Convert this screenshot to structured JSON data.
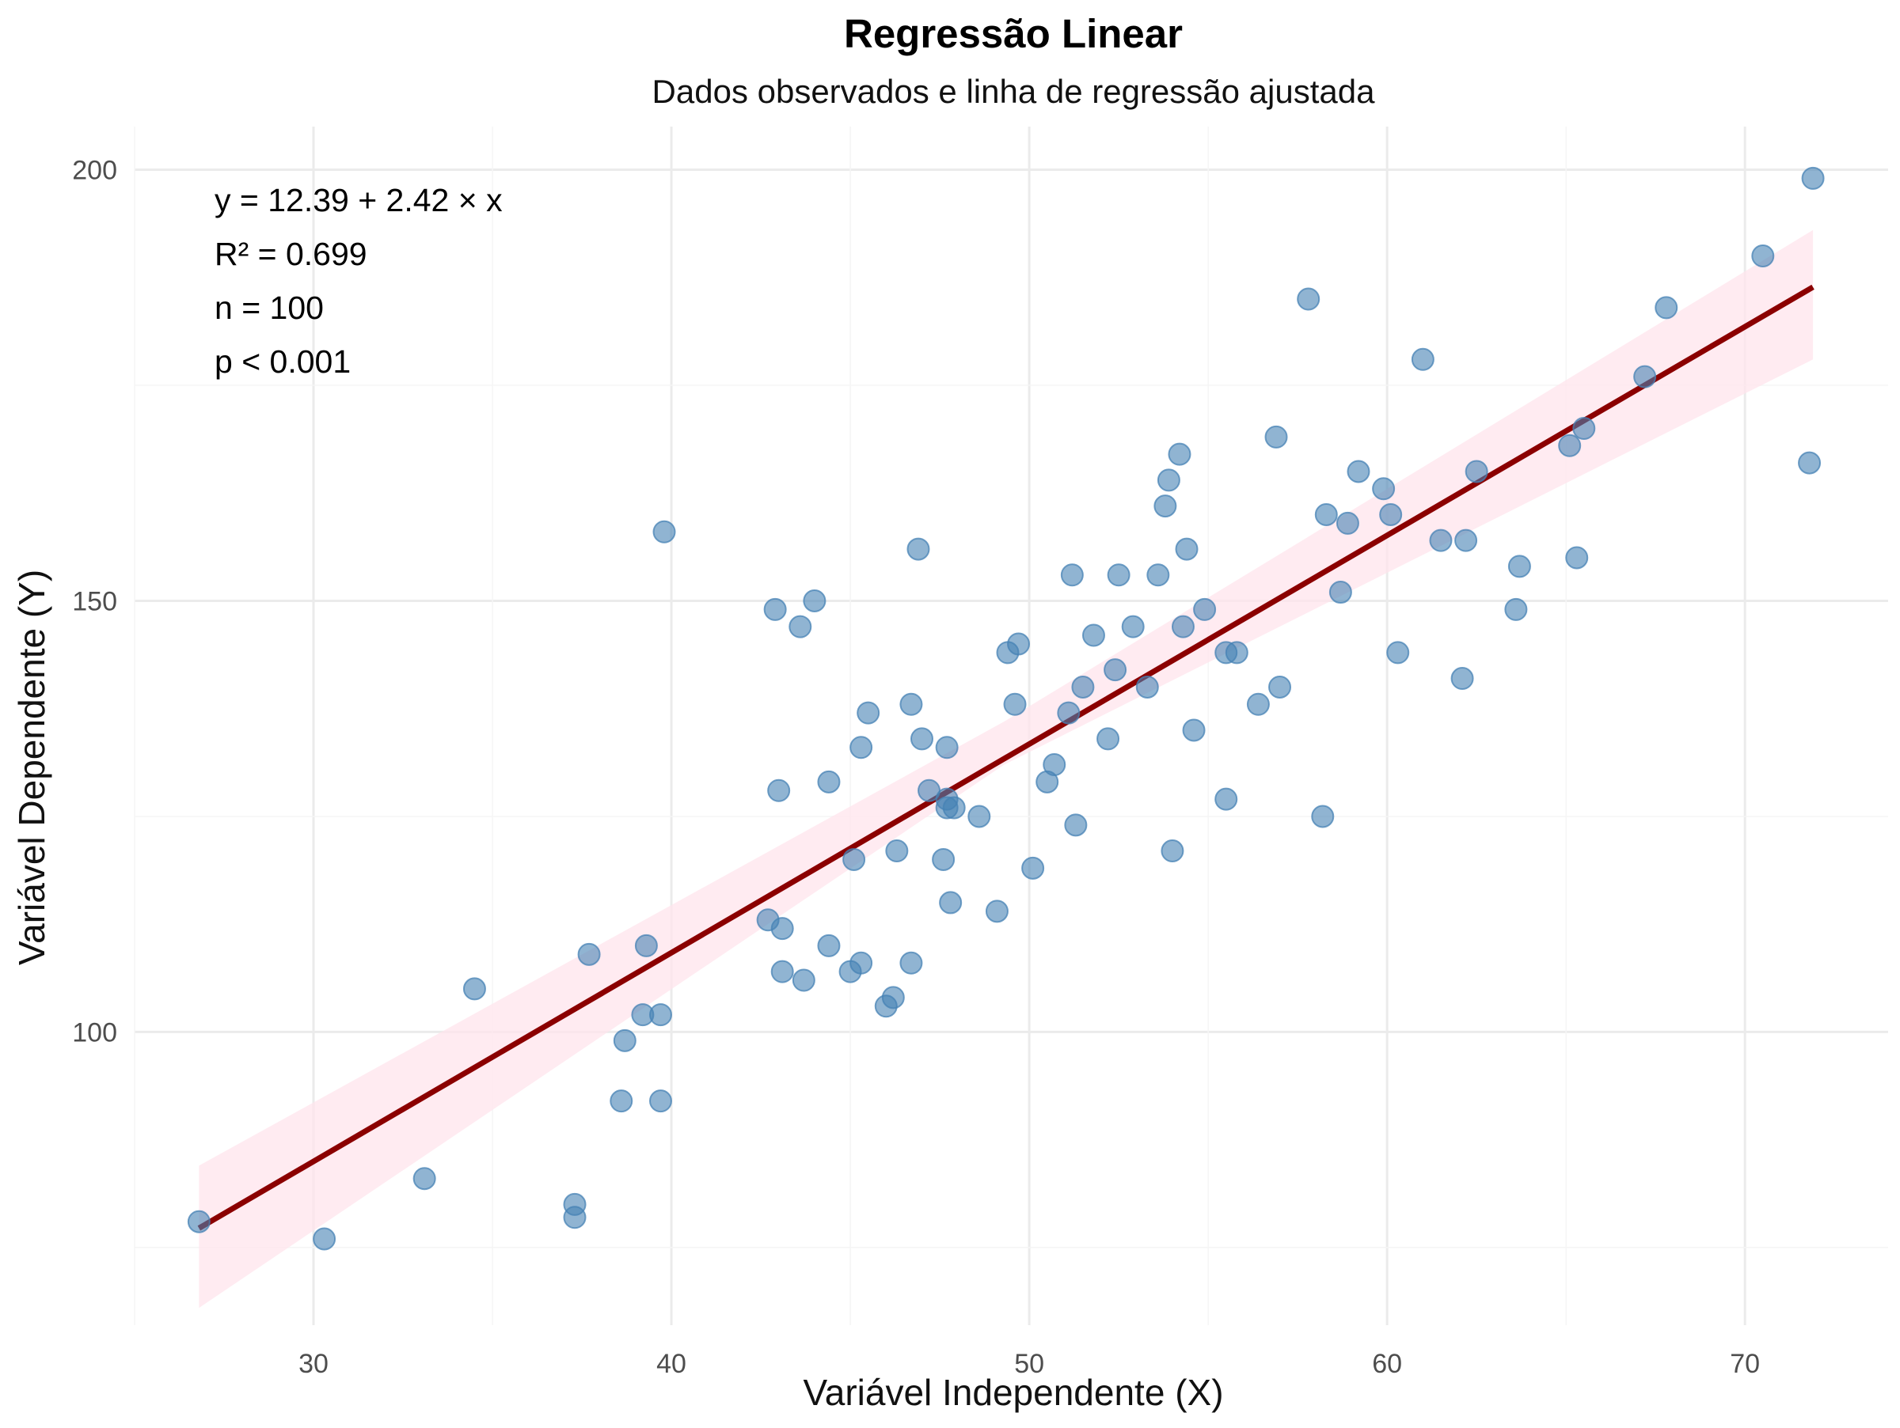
{
  "chart_data": {
    "type": "scatter",
    "title": "Regressão Linear",
    "subtitle": "Dados observados e linha de regressão ajustada",
    "xlabel": "Variável Independente (X)",
    "ylabel": "Variável Dependente (Y)",
    "xlim": [
      25.0,
      74.0
    ],
    "ylim": [
      66.0,
      205.0
    ],
    "xticks": [
      30,
      40,
      50,
      60,
      70
    ],
    "yticks": [
      100,
      150,
      200
    ],
    "grid": true,
    "legend": "none",
    "colors": {
      "points": "#4682b4",
      "regression_line": "#8b0000",
      "confidence_band": "#ffe4ec"
    },
    "annotations": [
      "y = 12.39 + 2.42 × x",
      "R² = 0.699",
      "n = 100",
      "p < 0.001"
    ],
    "regression": {
      "intercept": 12.39,
      "slope": 2.42,
      "x_range": [
        26.8,
        71.9
      ]
    },
    "confidence_band": {
      "x": [
        26.8,
        49.3,
        71.9
      ],
      "lower": [
        68.0,
        131.0,
        178.0
      ],
      "upper": [
        84.5,
        136.0,
        193.0
      ]
    },
    "points": {
      "x": [
        26.8,
        30.3,
        33.1,
        34.5,
        37.3,
        37.3,
        37.7,
        38.6,
        38.7,
        39.2,
        39.3,
        39.7,
        39.7,
        39.8,
        42.7,
        42.9,
        43.0,
        43.1,
        43.1,
        43.6,
        43.7,
        44.0,
        44.4,
        44.4,
        45.0,
        45.1,
        45.3,
        45.3,
        45.5,
        46.0,
        46.2,
        46.3,
        46.7,
        46.7,
        46.9,
        47.0,
        47.2,
        47.6,
        47.7,
        47.7,
        47.7,
        47.8,
        47.9,
        48.6,
        49.1,
        49.4,
        49.6,
        49.7,
        50.1,
        50.5,
        50.7,
        51.1,
        51.2,
        51.3,
        51.5,
        51.8,
        52.2,
        52.4,
        52.5,
        52.9,
        53.3,
        53.6,
        53.8,
        53.9,
        54.0,
        54.2,
        54.3,
        54.4,
        54.6,
        54.9,
        55.5,
        55.5,
        55.8,
        56.4,
        56.9,
        57.0,
        57.8,
        58.2,
        58.3,
        58.7,
        58.9,
        59.2,
        59.9,
        60.1,
        60.3,
        61.0,
        61.5,
        62.1,
        62.2,
        62.5,
        63.6,
        63.7,
        65.1,
        65.3,
        65.5,
        67.2,
        67.8,
        70.5,
        71.8,
        71.9
      ],
      "y": [
        78.0,
        76.0,
        83.0,
        105.0,
        80.0,
        78.5,
        109.0,
        92.0,
        99.0,
        102.0,
        110.0,
        102.0,
        92.0,
        158.0,
        113.0,
        149.0,
        128.0,
        107.0,
        112.0,
        147.0,
        106.0,
        150.0,
        110.0,
        129.0,
        107.0,
        120.0,
        133.0,
        108.0,
        137.0,
        103.0,
        104.0,
        121.0,
        108.0,
        138.0,
        156.0,
        134.0,
        128.0,
        120.0,
        127.0,
        126.0,
        133.0,
        115.0,
        126.0,
        125.0,
        114.0,
        144.0,
        138.0,
        145.0,
        119.0,
        129.0,
        131.0,
        137.0,
        153.0,
        124.0,
        140.0,
        146.0,
        134.0,
        142.0,
        153.0,
        147.0,
        140.0,
        153.0,
        161.0,
        164.0,
        121.0,
        167.0,
        147.0,
        156.0,
        135.0,
        149.0,
        127.0,
        144.0,
        144.0,
        138.0,
        169.0,
        140.0,
        185.0,
        125.0,
        160.0,
        151.0,
        159.0,
        165.0,
        163.0,
        160.0,
        144.0,
        178.0,
        157.0,
        141.0,
        157.0,
        165.0,
        149.0,
        154.0,
        168.0,
        155.0,
        170.0,
        176.0,
        184.0,
        190.0,
        166.0,
        199.0
      ]
    }
  }
}
